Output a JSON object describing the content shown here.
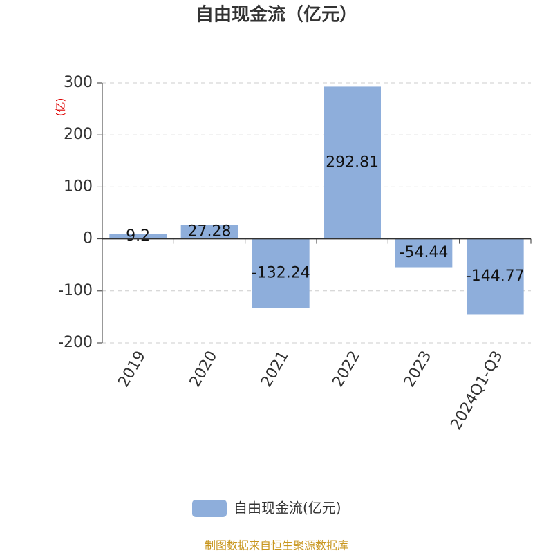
{
  "chart_data": {
    "type": "bar",
    "title": "自由现金流（亿元）",
    "y_label": "(亿)",
    "categories": [
      "2019",
      "2020",
      "2021",
      "2022",
      "2023",
      "2024Q1-Q3"
    ],
    "series": [
      {
        "name": "自由现金流(亿元)",
        "color": "#8eaedb",
        "values": [
          9.2,
          27.28,
          -132.24,
          292.81,
          -54.44,
          -144.77
        ]
      }
    ],
    "ylim": [
      -200,
      300
    ],
    "yticks": [
      -200,
      -100,
      0,
      100,
      200,
      300
    ],
    "grid": true,
    "legend": "bottom",
    "source": "制图数据来自恒生聚源数据库"
  }
}
